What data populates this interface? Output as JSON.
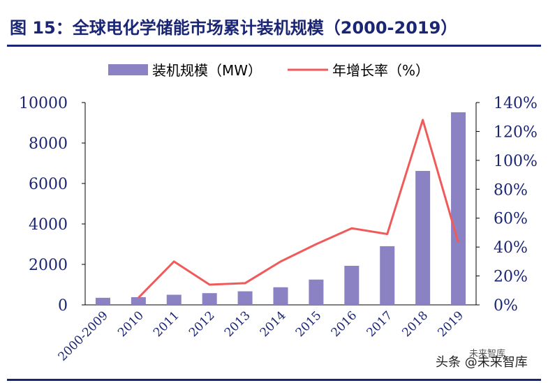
{
  "figure": {
    "title": "图 15：全球电化学储能市场累计装机规模（2000-2019）"
  },
  "watermark": {
    "line1": "头条 @未来智库",
    "line2": "未来智库"
  },
  "chart_data": {
    "type": "bar",
    "categories": [
      "2000-2009",
      "2010",
      "2011",
      "2012",
      "2013",
      "2014",
      "2015",
      "2016",
      "2017",
      "2018",
      "2019"
    ],
    "series": [
      {
        "name": "装机规模（MW）",
        "type": "bar",
        "axis": "left",
        "color": "#8b82c4",
        "values": [
          350,
          380,
          500,
          580,
          670,
          870,
          1250,
          1930,
          2900,
          6620,
          9520
        ]
      },
      {
        "name": "年增长率（%）",
        "type": "line",
        "axis": "right",
        "color": "#f15a5a",
        "values": [
          null,
          5,
          30,
          14,
          15,
          30,
          42,
          53,
          49,
          128,
          43
        ]
      }
    ],
    "ylim_left": [
      0,
      10000
    ],
    "yticks_left": [
      "0",
      "2000",
      "4000",
      "6000",
      "8000",
      "10000"
    ],
    "ylim_right": [
      0,
      140
    ],
    "yticks_right": [
      "0%",
      "20%",
      "40%",
      "60%",
      "80%",
      "100%",
      "120%",
      "140%"
    ],
    "legend_position": "top",
    "grid": false
  }
}
